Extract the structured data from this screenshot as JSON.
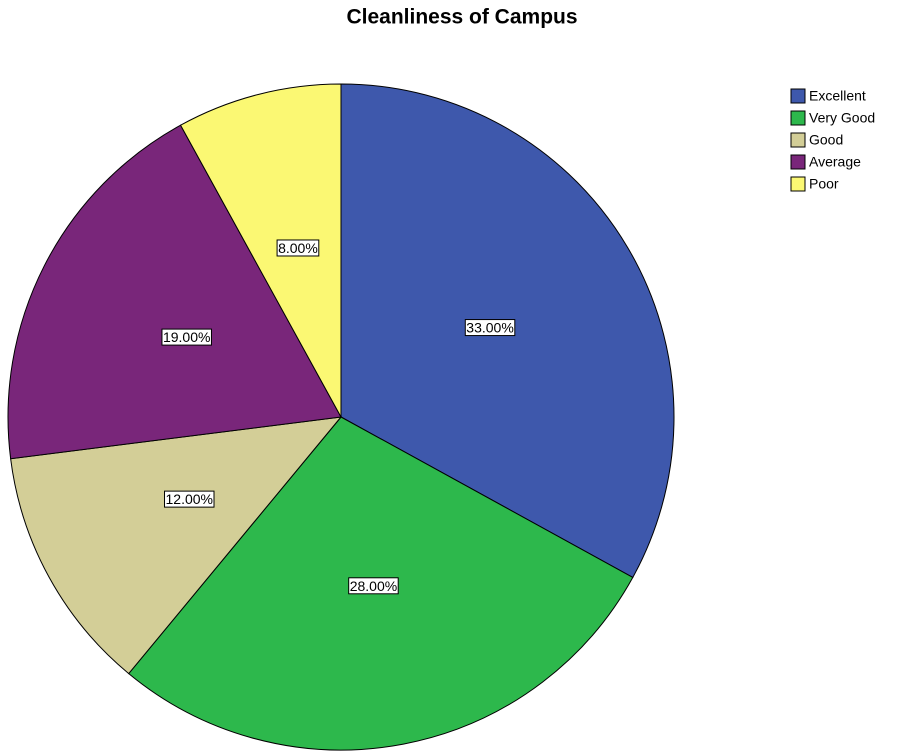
{
  "chart_data": {
    "type": "pie",
    "title": "Cleanliness of Campus",
    "categories": [
      "Excellent",
      "Very Good",
      "Good",
      "Average",
      "Poor"
    ],
    "values": [
      33,
      28,
      12,
      19,
      8
    ],
    "value_labels": [
      "33.00%",
      "28.00%",
      "12.00%",
      "19.00%",
      "8.00%"
    ],
    "colors": [
      "#3e58ac",
      "#2db84c",
      "#d3ce97",
      "#79267a",
      "#fbf873"
    ],
    "legend": "top-right"
  }
}
